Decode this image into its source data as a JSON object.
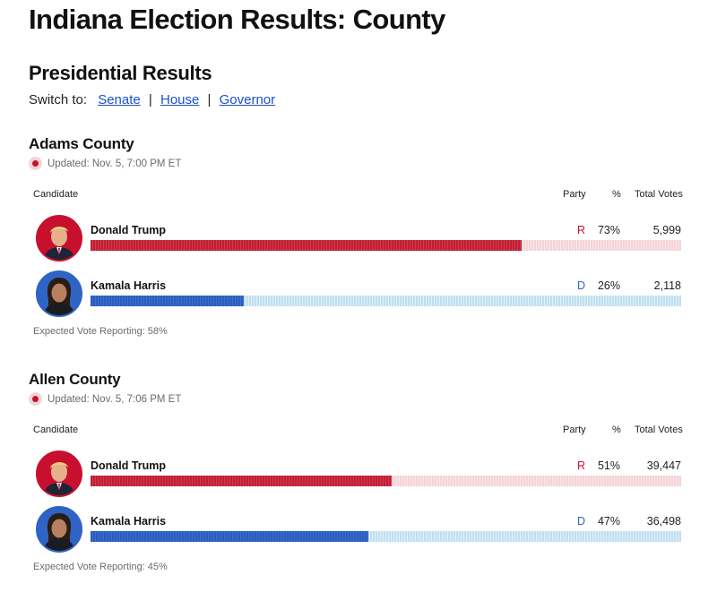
{
  "page": {
    "title": "Indiana Election Results: County"
  },
  "section": {
    "title": "Presidential Results",
    "switch_prefix": "Switch to:",
    "links": [
      {
        "label": "Senate"
      },
      {
        "label": "House"
      },
      {
        "label": "Governor"
      }
    ]
  },
  "table_headers": {
    "candidate": "Candidate",
    "party": "Party",
    "pct": "%",
    "votes": "Total Votes"
  },
  "counties": [
    {
      "name": "Adams County",
      "updated": "Updated: Nov. 5, 7:00 PM ET",
      "expected": "Expected Vote Reporting: 58%",
      "candidates": [
        {
          "name": "Donald Trump",
          "party": "R",
          "pct": "73%",
          "votes": "5,999",
          "share": 0.73
        },
        {
          "name": "Kamala Harris",
          "party": "D",
          "pct": "26%",
          "votes": "2,118",
          "share": 0.26
        }
      ]
    },
    {
      "name": "Allen County",
      "updated": "Updated: Nov. 5, 7:06 PM ET",
      "expected": "Expected Vote Reporting: 45%",
      "candidates": [
        {
          "name": "Donald Trump",
          "party": "R",
          "pct": "51%",
          "votes": "39,447",
          "share": 0.51
        },
        {
          "name": "Kamala Harris",
          "party": "D",
          "pct": "47%",
          "votes": "36,498",
          "share": 0.47
        }
      ]
    }
  ],
  "colors": {
    "republican": "#c8102e",
    "democrat": "#2f64c4",
    "link": "#1a4fd6"
  }
}
